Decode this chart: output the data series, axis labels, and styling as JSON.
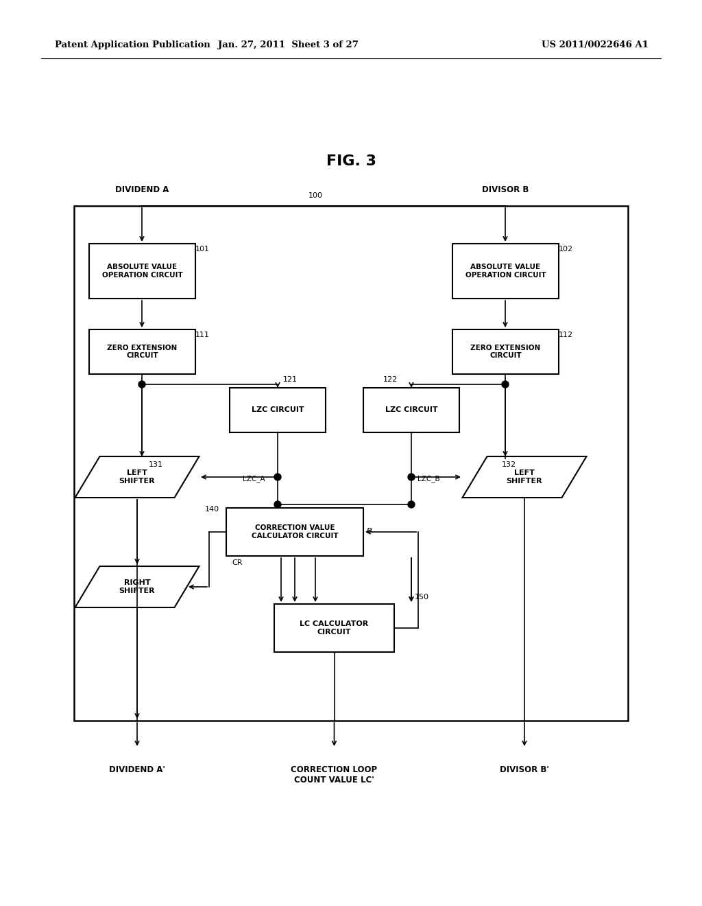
{
  "bg_color": "#ffffff",
  "title": "FIG. 3",
  "header_left": "Patent Application Publication",
  "header_mid": "Jan. 27, 2011  Sheet 3 of 27",
  "header_right": "US 2011/0022646 A1"
}
